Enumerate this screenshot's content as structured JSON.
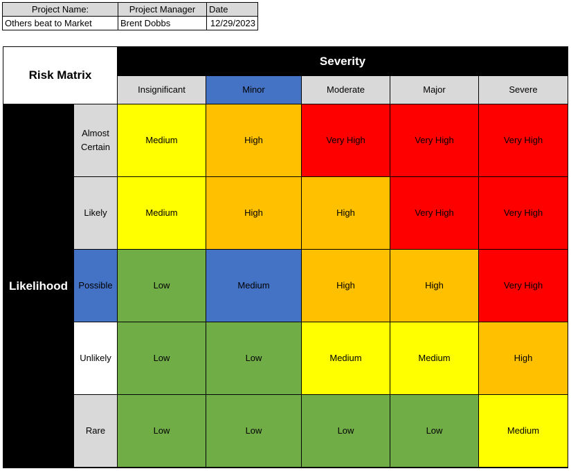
{
  "project": {
    "name_label": "Project Name:",
    "manager_label": "Project Manager",
    "date_label": "Date",
    "name_value": "Others beat to Market",
    "manager_value": "Brent Dobbs",
    "date_value": "12/29/2023"
  },
  "matrix": {
    "title": "Risk Matrix",
    "severity_label": "Severity",
    "likelihood_label": "Likelihood",
    "severity_levels": [
      "Insignificant",
      "Minor",
      "Moderate",
      "Major",
      "Severe"
    ],
    "likelihood_levels": [
      "Almost Certain",
      "Likely",
      "Possible",
      "Unlikely",
      "Rare"
    ],
    "highlighted_severity": "Minor",
    "highlighted_likelihood": "Possible",
    "cells": [
      [
        "Medium",
        "High",
        "Very High",
        "Very High",
        "Very High"
      ],
      [
        "Medium",
        "High",
        "High",
        "Very High",
        "Very High"
      ],
      [
        "Low",
        "Medium",
        "High",
        "High",
        "Very High"
      ],
      [
        "Low",
        "Low",
        "Medium",
        "Medium",
        "High"
      ],
      [
        "Low",
        "Low",
        "Low",
        "Low",
        "Medium"
      ]
    ]
  },
  "colors": {
    "Low": "#70ad47",
    "Medium": "#ffff00",
    "High": "#ffc000",
    "Very High": "#ff0000",
    "highlight": "#4472c4",
    "header_gray": "#d9d9d9",
    "unlikely_header": "#ffffff"
  }
}
